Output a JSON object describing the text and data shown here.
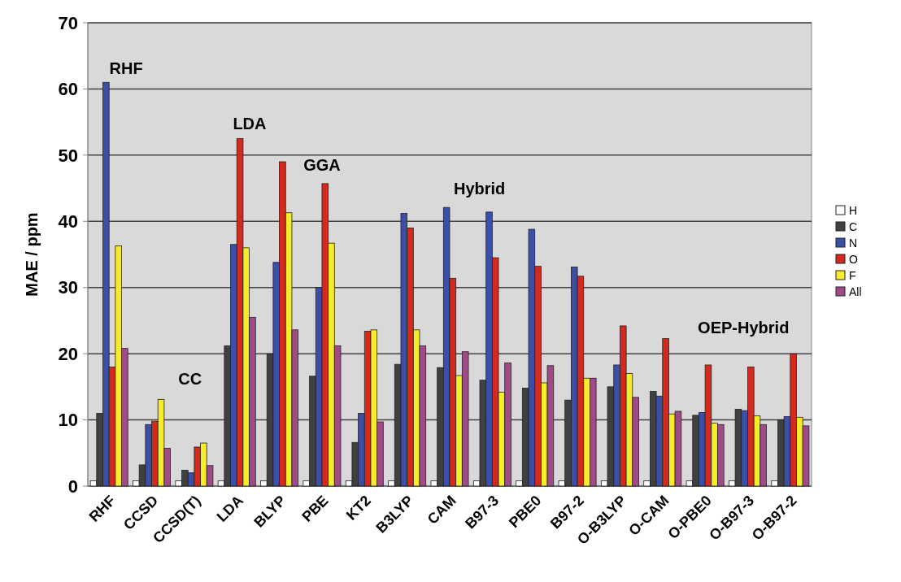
{
  "chart_data": {
    "type": "bar",
    "ylabel": "MAE / ppm",
    "categories": [
      "RHF",
      "CCSD",
      "CCSD(T)",
      "LDA",
      "BLYP",
      "PBE",
      "KT2",
      "B3LYP",
      "CAM",
      "B97-3",
      "PBE0",
      "B97-2",
      "O-B3LYP",
      "O-CAM",
      "O-PBE0",
      "O-B97-3",
      "O-B97-2"
    ],
    "series": [
      {
        "name": "H",
        "color": "#ffffff",
        "values": [
          0.8,
          0.8,
          0.8,
          0.8,
          0.8,
          0.8,
          0.8,
          0.8,
          0.8,
          0.8,
          0.8,
          0.8,
          0.8,
          0.8,
          0.8,
          0.8,
          0.8
        ]
      },
      {
        "name": "C",
        "color": "#404040",
        "values": [
          11,
          3.2,
          2.4,
          21.2,
          20,
          16.6,
          6.6,
          18.4,
          17.9,
          16,
          14.8,
          13,
          15,
          14.3,
          10.7,
          11.6,
          10
        ]
      },
      {
        "name": "N",
        "color": "#3a4fa8",
        "values": [
          61,
          9.3,
          2,
          36.5,
          33.8,
          30,
          11,
          41.2,
          42.1,
          41.4,
          38.8,
          33.1,
          18.3,
          13.6,
          11.1,
          11.4,
          10.5
        ]
      },
      {
        "name": "O",
        "color": "#d42a1e",
        "values": [
          18,
          9.8,
          5.9,
          52.5,
          49,
          45.7,
          23.4,
          39,
          31.4,
          34.5,
          33.2,
          31.7,
          24.2,
          22.3,
          18.3,
          18,
          20
        ]
      },
      {
        "name": "F",
        "color": "#f5ec2a",
        "values": [
          36.3,
          13.1,
          6.5,
          36,
          41.3,
          36.7,
          23.6,
          23.6,
          16.7,
          14.2,
          15.6,
          16.3,
          17,
          10.9,
          9.5,
          10.6,
          10.4
        ]
      },
      {
        "name": "All",
        "color": "#a04a8a",
        "values": [
          20.8,
          5.7,
          3.1,
          25.5,
          23.6,
          21.2,
          9.7,
          21.2,
          20.3,
          18.6,
          18.2,
          16.3,
          13.4,
          11.3,
          9.3,
          9.3,
          9.1
        ]
      }
    ],
    "ylim": [
      0,
      70
    ],
    "yticks": [
      0,
      10,
      20,
      30,
      40,
      50,
      60,
      70
    ],
    "grid": "y",
    "legend": "right",
    "annotations": [
      "RHF",
      "CC",
      "LDA",
      "GGA",
      "Hybrid",
      "OEP-Hybrid"
    ]
  }
}
